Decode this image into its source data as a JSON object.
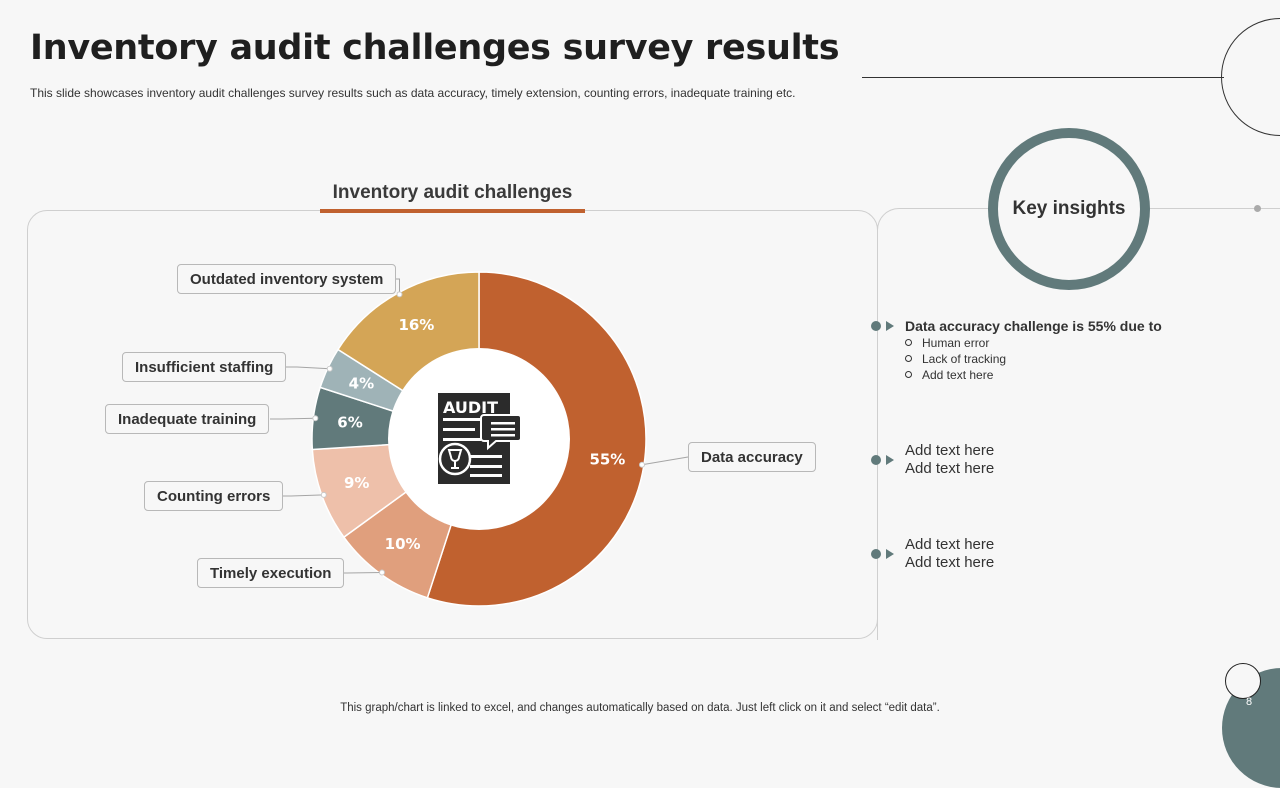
{
  "slide": {
    "title": "Inventory audit challenges survey results",
    "subtitle": "This slide showcases inventory audit challenges survey results such as data accuracy, timely extension, counting errors, inadequate training etc.",
    "footer_note": "This graph/chart is linked to excel,  and changes automatically based on data. Just left click on it and select “edit data”.",
    "page_number": "8"
  },
  "center_icon": {
    "name": "audit-document-icon",
    "label": "AUDIT"
  },
  "chart_data": {
    "type": "pie",
    "title": "Inventory audit challenges",
    "unit": "%",
    "categories": [
      "Data accuracy",
      "Timely execution",
      "Counting errors",
      "Inadequate training",
      "Insufficient staffing",
      "Outdated inventory system"
    ],
    "values": [
      55,
      10,
      9,
      6,
      4,
      16
    ],
    "value_labels": [
      "55%",
      "10%",
      "9%",
      "6%",
      "4%",
      "16%"
    ],
    "colors": [
      "#c0612f",
      "#e09f7d",
      "#eec0aa",
      "#617a7b",
      "#9fb3b7",
      "#d4a556"
    ],
    "legend": "callouts"
  },
  "insights": {
    "title": "Key insights",
    "items": [
      {
        "heading": "Data accuracy challenge is 55% due to",
        "sub_items": [
          "Human error",
          "Lack of tracking",
          "Add text here"
        ]
      },
      {
        "lines": [
          "Add text here",
          "Add text here"
        ]
      },
      {
        "lines": [
          "Add text here",
          "Add text here"
        ]
      }
    ]
  }
}
